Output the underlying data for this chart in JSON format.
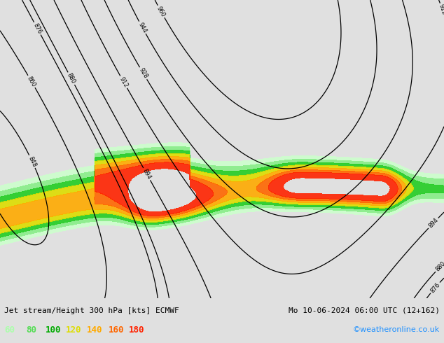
{
  "title_left": "Jet stream/Height 300 hPa [kts] ECMWF",
  "title_right": "Mo 10-06-2024 06:00 UTC (12+162)",
  "credit": "©weatheronline.co.uk",
  "legend_values": [
    "60",
    "80",
    "100",
    "120",
    "140",
    "160",
    "180"
  ],
  "legend_colors": [
    "#aaffaa",
    "#55dd55",
    "#00aa00",
    "#dddd00",
    "#ffaa00",
    "#ff6600",
    "#ff2200"
  ],
  "background_color": "#e0e0e0",
  "land_color": "#ccffcc",
  "ocean_color": "#e0e0e0",
  "border_color": "#888888",
  "contour_color": "#000000",
  "figsize": [
    6.34,
    4.9
  ],
  "dpi": 100,
  "jet_band_colors": [
    "#ccffcc",
    "#88ee88",
    "#22cc22",
    "#dddd00",
    "#ffaa00",
    "#ff6600",
    "#ff2200"
  ],
  "lon_min": -110,
  "lon_max": 30,
  "lat_min": -68,
  "lat_max": 15,
  "contour_labels": [
    "912",
    "944",
    "860",
    "880",
    "848",
    "848"
  ],
  "height_levels": [
    848,
    860,
    876,
    880,
    894,
    912,
    928,
    944,
    960
  ]
}
